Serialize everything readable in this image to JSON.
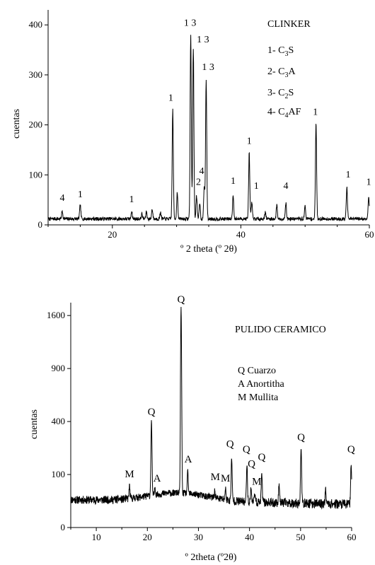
{
  "chart_data": [
    {
      "type": "line",
      "title": "CLINKER",
      "xlabel": "º 2 theta (º 2θ)",
      "ylabel": "cuentas",
      "xlim": [
        10,
        60
      ],
      "ylim": [
        0,
        430
      ],
      "xticks": [
        20,
        40,
        60
      ],
      "yticks": [
        0,
        100,
        200,
        300,
        400
      ],
      "legend": [
        "1- C3S",
        "2- C3A",
        "3- C2S",
        "4- C4AF"
      ],
      "baseline": 12,
      "peaks": [
        {
          "x": 12.2,
          "y": 28
        },
        {
          "x": 15.0,
          "y": 40
        },
        {
          "x": 23.0,
          "y": 28
        },
        {
          "x": 24.6,
          "y": 22
        },
        {
          "x": 25.3,
          "y": 26
        },
        {
          "x": 26.2,
          "y": 32
        },
        {
          "x": 27.5,
          "y": 26
        },
        {
          "x": 29.4,
          "y": 230
        },
        {
          "x": 30.1,
          "y": 65
        },
        {
          "x": 32.2,
          "y": 380
        },
        {
          "x": 32.6,
          "y": 355
        },
        {
          "x": 33.1,
          "y": 58
        },
        {
          "x": 33.6,
          "y": 45
        },
        {
          "x": 34.3,
          "y": 75
        },
        {
          "x": 34.6,
          "y": 292
        },
        {
          "x": 38.8,
          "y": 60
        },
        {
          "x": 41.3,
          "y": 145
        },
        {
          "x": 41.7,
          "y": 45
        },
        {
          "x": 43.8,
          "y": 26
        },
        {
          "x": 45.6,
          "y": 40
        },
        {
          "x": 47.0,
          "y": 45
        },
        {
          "x": 50.0,
          "y": 38
        },
        {
          "x": 51.7,
          "y": 205
        },
        {
          "x": 56.5,
          "y": 75
        },
        {
          "x": 59.9,
          "y": 58
        }
      ],
      "annotations": [
        {
          "text": "4",
          "x": 12.2,
          "y": 48
        },
        {
          "text": "1",
          "x": 15.0,
          "y": 55
        },
        {
          "text": "1",
          "x": 23.0,
          "y": 45
        },
        {
          "text": "1",
          "x": 29.1,
          "y": 248
        },
        {
          "text": "1 3",
          "x": 32.1,
          "y": 398
        },
        {
          "text": "1 3",
          "x": 34.1,
          "y": 365
        },
        {
          "text": "1 3",
          "x": 34.9,
          "y": 310
        },
        {
          "text": "4",
          "x": 33.9,
          "y": 102
        },
        {
          "text": "2",
          "x": 33.4,
          "y": 80
        },
        {
          "text": "1",
          "x": 38.8,
          "y": 82
        },
        {
          "text": "1",
          "x": 41.3,
          "y": 162
        },
        {
          "text": "1",
          "x": 42.4,
          "y": 72
        },
        {
          "text": "4",
          "x": 47.0,
          "y": 72
        },
        {
          "text": "1",
          "x": 51.6,
          "y": 220
        },
        {
          "text": "1",
          "x": 56.7,
          "y": 95
        },
        {
          "text": "1",
          "x": 59.9,
          "y": 80
        }
      ]
    },
    {
      "type": "line",
      "title": "PULIDO CERAMICO",
      "xlabel": "º 2theta  (º2θ)",
      "ylabel": "cuentas",
      "xlim": [
        5,
        60
      ],
      "ylim": [
        0,
        1800
      ],
      "y_scale": "sqrt",
      "xticks": [
        10,
        20,
        30,
        40,
        50,
        60
      ],
      "yticks": [
        0,
        100,
        400,
        900,
        1600
      ],
      "legend": [
        "Q Cuarzo",
        "A Anortitha",
        "M Mullita"
      ],
      "baseline": 28,
      "peaks": [
        {
          "x": 16.5,
          "y": 60
        },
        {
          "x": 20.8,
          "y": 405
        },
        {
          "x": 21.5,
          "y": 48
        },
        {
          "x": 26.6,
          "y": 1715
        },
        {
          "x": 27.9,
          "y": 100
        },
        {
          "x": 33.2,
          "y": 45
        },
        {
          "x": 35.3,
          "y": 55
        },
        {
          "x": 36.5,
          "y": 170
        },
        {
          "x": 39.5,
          "y": 145
        },
        {
          "x": 40.3,
          "y": 62
        },
        {
          "x": 41.0,
          "y": 50
        },
        {
          "x": 42.4,
          "y": 110
        },
        {
          "x": 45.8,
          "y": 75
        },
        {
          "x": 50.1,
          "y": 225
        },
        {
          "x": 54.9,
          "y": 60
        },
        {
          "x": 59.9,
          "y": 150
        }
      ],
      "annotations": [
        {
          "text": "M",
          "x": 16.5,
          "y": 90
        },
        {
          "text": "Q",
          "x": 20.8,
          "y": 450
        },
        {
          "text": "A",
          "x": 21.9,
          "y": 75
        },
        {
          "text": "Q",
          "x": 26.6,
          "y": 1800
        },
        {
          "text": "A",
          "x": 28.0,
          "y": 150
        },
        {
          "text": "M",
          "x": 33.3,
          "y": 80
        },
        {
          "text": "M",
          "x": 35.3,
          "y": 75
        },
        {
          "text": "Q",
          "x": 36.2,
          "y": 230
        },
        {
          "text": "Q",
          "x": 39.4,
          "y": 200
        },
        {
          "text": "Q",
          "x": 40.4,
          "y": 130
        },
        {
          "text": "M",
          "x": 41.4,
          "y": 65
        },
        {
          "text": "Q",
          "x": 42.4,
          "y": 160
        },
        {
          "text": "Q",
          "x": 50.1,
          "y": 270
        },
        {
          "text": "Q",
          "x": 59.9,
          "y": 200
        }
      ]
    }
  ]
}
